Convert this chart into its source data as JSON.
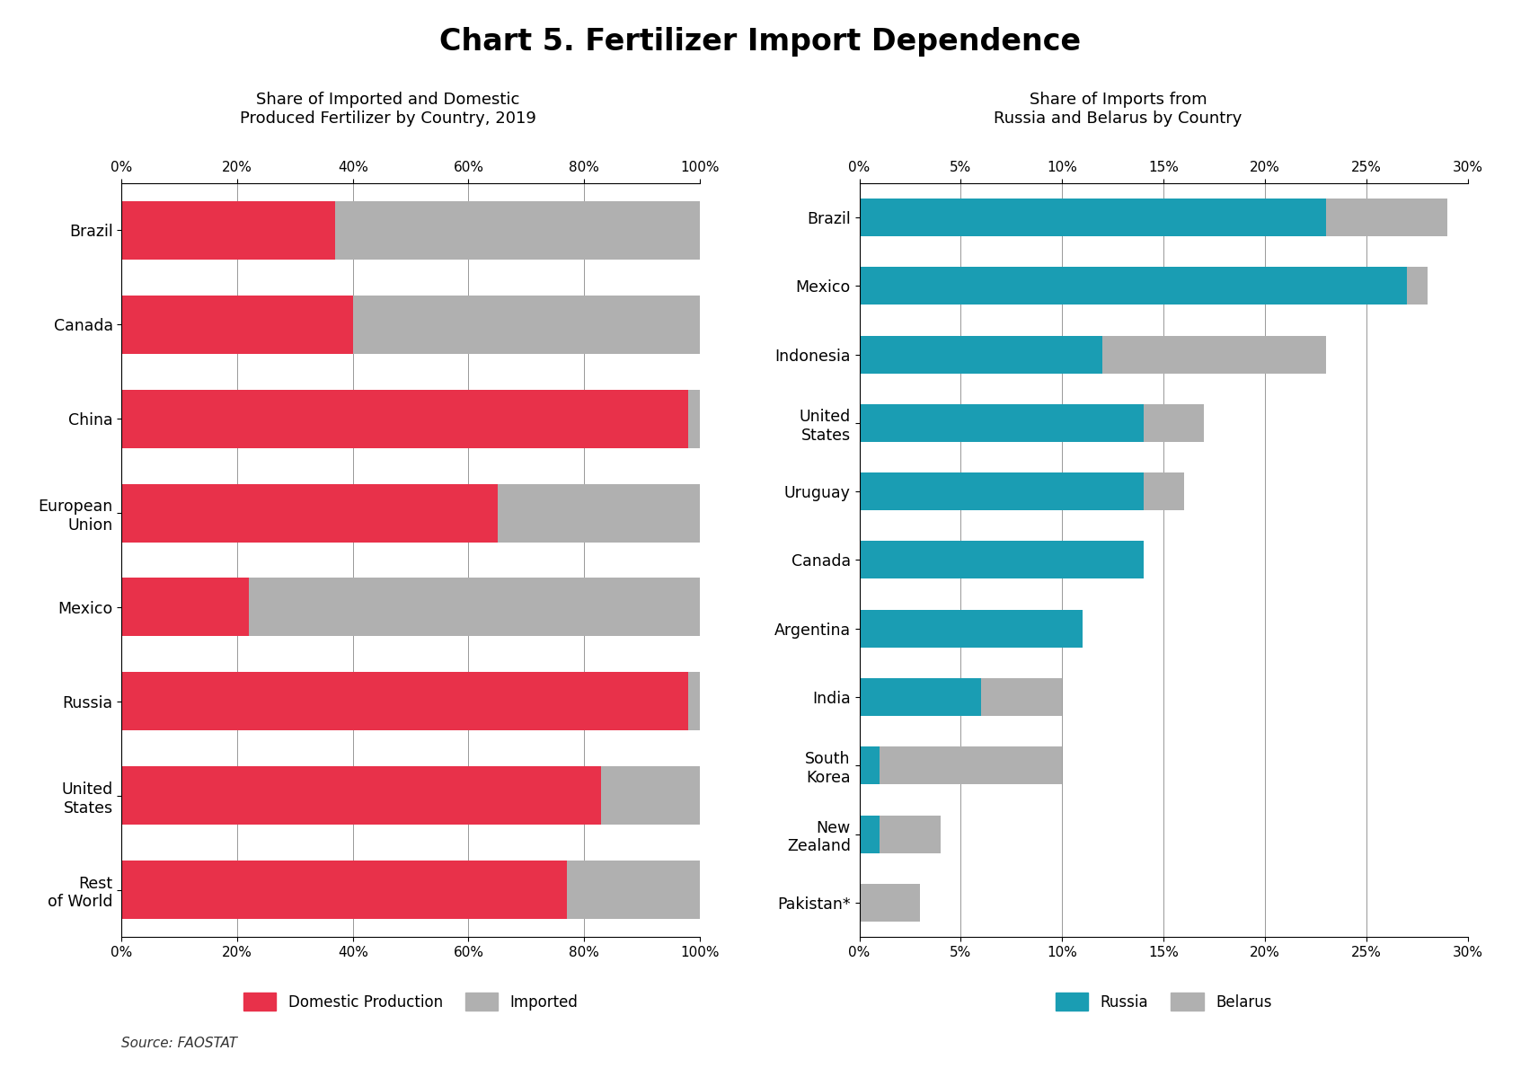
{
  "title": "Chart 5. Fertilizer Import Dependence",
  "left_title": "Share of Imported and Domestic\nProduced Fertilizer by Country, 2019",
  "right_title": "Share of Imports from\nRussia and Belarus by Country",
  "left_countries": [
    "Brazil",
    "Canada",
    "China",
    "European\nUnion",
    "Mexico",
    "Russia",
    "United\nStates",
    "Rest\nof World"
  ],
  "left_domestic": [
    37,
    40,
    98,
    65,
    22,
    98,
    83,
    77
  ],
  "left_imported": [
    63,
    60,
    2,
    35,
    78,
    2,
    17,
    23
  ],
  "right_countries": [
    "Brazil",
    "Mexico",
    "Indonesia",
    "United\nStates",
    "Uruguay",
    "Canada",
    "Argentina",
    "India",
    "South\nKorea",
    "New\nZealand",
    "Pakistan*"
  ],
  "right_russia": [
    23,
    27,
    12,
    14,
    14,
    14,
    11,
    6,
    1,
    1,
    0
  ],
  "right_belarus": [
    6,
    1,
    11,
    3,
    2,
    0,
    0,
    4,
    9,
    3,
    3
  ],
  "domestic_color": "#e8314a",
  "imported_color": "#b0b0b0",
  "russia_color": "#1a9db3",
  "belarus_color": "#b0b0b0",
  "source_text": "Source: FAOSTAT",
  "background_color": "#ffffff"
}
